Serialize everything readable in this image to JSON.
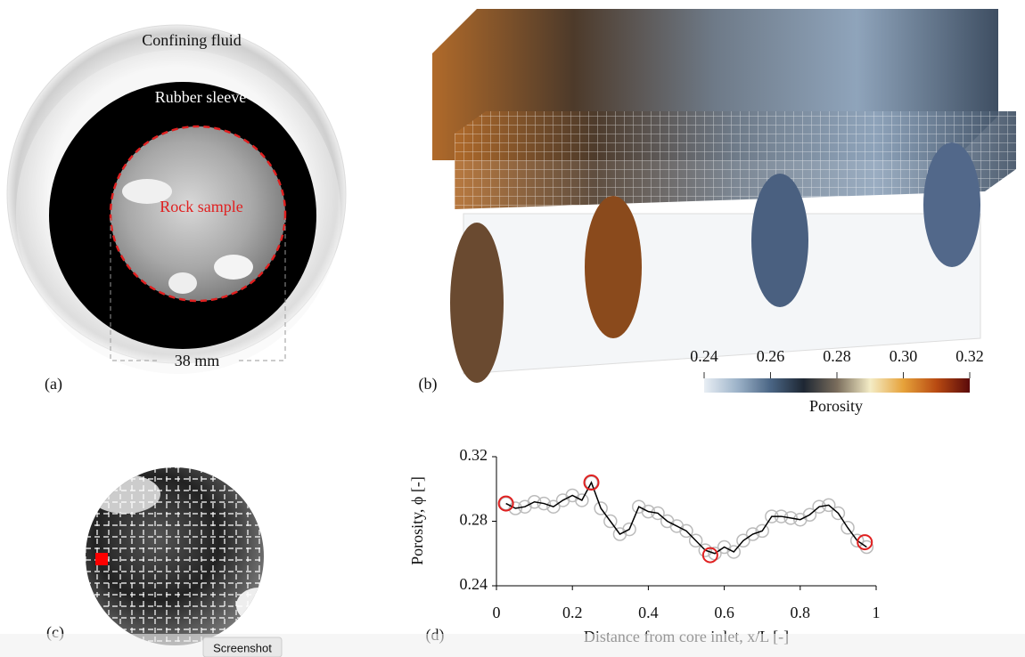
{
  "panel_a": {
    "label": "(a)",
    "confining_fluid": "Confining fluid",
    "rubber_sleeve": "Rubber sleeve",
    "rock_sample": "Rock sample",
    "diameter": "38 mm"
  },
  "panel_b": {
    "label": "(b)",
    "colorbar": {
      "title": "Porosity",
      "lim": [
        0.24,
        0.32
      ],
      "ticks": [
        0.24,
        0.26,
        0.28,
        {
          "value": 0.3,
          "label": "0.30"
        },
        0.32
      ],
      "colors": [
        "#e8eef4",
        "#9db3c9",
        "#4a6584",
        "#1e2733",
        "#7a6d5c",
        "#f4ecc6",
        "#e6a23a",
        "#b84a12",
        "#5a0a0a"
      ]
    }
  },
  "panel_c": {
    "label": "(c)"
  },
  "chart_data": {
    "type": "line",
    "label": "(d)",
    "x_label": "Distance from core inlet, x/L [-]",
    "y_label": "Porosity, ϕ [-]",
    "xlim": [
      0,
      1
    ],
    "ylim": [
      0.24,
      0.32
    ],
    "xticks": [
      0,
      0.2,
      0.4,
      0.6,
      0.8,
      1
    ],
    "yticks": [
      0.24,
      0.28,
      0.32
    ],
    "x": [
      0.025,
      0.05,
      0.075,
      0.1,
      0.125,
      0.15,
      0.175,
      0.2,
      0.225,
      0.25,
      0.275,
      0.3,
      0.325,
      0.35,
      0.375,
      0.4,
      0.425,
      0.45,
      0.475,
      0.5,
      0.525,
      0.55,
      0.575,
      0.6,
      0.625,
      0.65,
      0.675,
      0.7,
      0.725,
      0.75,
      0.775,
      0.8,
      0.825,
      0.85,
      0.875,
      0.9,
      0.925,
      0.95,
      0.975
    ],
    "series": [
      {
        "color": "#000000",
        "marker_color": "#bbbbbb",
        "values": [
          0.291,
          0.288,
          0.289,
          0.292,
          0.291,
          0.289,
          0.293,
          0.296,
          0.293,
          0.304,
          0.288,
          0.28,
          0.272,
          0.275,
          0.289,
          0.286,
          0.285,
          0.28,
          0.277,
          0.274,
          0.268,
          0.262,
          0.26,
          0.264,
          0.261,
          0.268,
          0.272,
          0.274,
          0.283,
          0.283,
          0.282,
          0.281,
          0.284,
          0.289,
          0.29,
          0.285,
          0.276,
          0.268,
          0.264
        ]
      }
    ],
    "highlight": {
      "color": "#e02020",
      "x": [
        0.025,
        0.25,
        0.563,
        0.97
      ],
      "values": [
        0.291,
        0.304,
        0.259,
        0.267
      ]
    }
  },
  "tooltip": "Screenshot"
}
